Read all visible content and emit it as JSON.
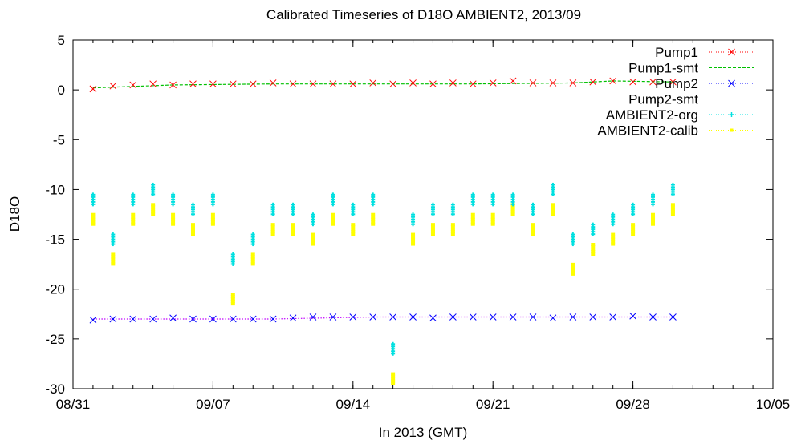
{
  "chart_data": {
    "type": "scatter",
    "title": "Calibrated Timeseries of D18O AMBIENT2, 2013/09",
    "xlabel": "In 2013 (GMT)",
    "ylabel": "D18O",
    "xlim": [
      "2013-08-31",
      "2013-10-05"
    ],
    "ylim": [
      -30,
      5
    ],
    "x_ticks": [
      "08/31",
      "09/07",
      "09/14",
      "09/21",
      "09/28",
      "10/05"
    ],
    "y_ticks": [
      "5",
      "0",
      "-5",
      "-10",
      "-15",
      "-20",
      "-25",
      "-30"
    ],
    "grid": false,
    "legend_position": "top-right",
    "series": [
      {
        "name": "Pump1",
        "marker": "x",
        "color": "#ff0000",
        "x": [
          "2013-09-01",
          "2013-09-02",
          "2013-09-03",
          "2013-09-04",
          "2013-09-05",
          "2013-09-06",
          "2013-09-07",
          "2013-09-08",
          "2013-09-09",
          "2013-09-10",
          "2013-09-11",
          "2013-09-12",
          "2013-09-13",
          "2013-09-14",
          "2013-09-15",
          "2013-09-16",
          "2013-09-17",
          "2013-09-18",
          "2013-09-19",
          "2013-09-20",
          "2013-09-21",
          "2013-09-22",
          "2013-09-23",
          "2013-09-24",
          "2013-09-25",
          "2013-09-26",
          "2013-09-27",
          "2013-09-28",
          "2013-09-29",
          "2013-09-30"
        ],
        "y": [
          0.1,
          0.4,
          0.5,
          0.6,
          0.5,
          0.6,
          0.6,
          0.6,
          0.6,
          0.7,
          0.6,
          0.6,
          0.6,
          0.6,
          0.7,
          0.6,
          0.7,
          0.6,
          0.7,
          0.6,
          0.7,
          0.9,
          0.7,
          0.7,
          0.7,
          0.8,
          0.9,
          0.8,
          0.8,
          0.8
        ]
      },
      {
        "name": "Pump1-smt",
        "marker": "line-dashed",
        "color": "#00c000",
        "x": [
          "2013-09-01",
          "2013-09-05",
          "2013-09-10",
          "2013-09-15",
          "2013-09-20",
          "2013-09-25",
          "2013-09-27",
          "2013-09-30"
        ],
        "y": [
          0.2,
          0.5,
          0.6,
          0.6,
          0.6,
          0.7,
          0.9,
          0.8
        ]
      },
      {
        "name": "Pump2",
        "marker": "x",
        "color": "#0000ff",
        "x": [
          "2013-09-01",
          "2013-09-02",
          "2013-09-03",
          "2013-09-04",
          "2013-09-05",
          "2013-09-06",
          "2013-09-07",
          "2013-09-08",
          "2013-09-09",
          "2013-09-10",
          "2013-09-11",
          "2013-09-12",
          "2013-09-13",
          "2013-09-14",
          "2013-09-15",
          "2013-09-16",
          "2013-09-17",
          "2013-09-18",
          "2013-09-19",
          "2013-09-20",
          "2013-09-21",
          "2013-09-22",
          "2013-09-23",
          "2013-09-24",
          "2013-09-25",
          "2013-09-26",
          "2013-09-27",
          "2013-09-28",
          "2013-09-29",
          "2013-09-30"
        ],
        "y": [
          -23.1,
          -23.0,
          -23.0,
          -23.0,
          -22.9,
          -23.0,
          -23.0,
          -23.0,
          -23.0,
          -23.0,
          -22.9,
          -22.8,
          -22.8,
          -22.8,
          -22.8,
          -22.8,
          -22.8,
          -22.9,
          -22.8,
          -22.8,
          -22.8,
          -22.8,
          -22.8,
          -22.9,
          -22.8,
          -22.8,
          -22.8,
          -22.7,
          -22.8,
          -22.8
        ]
      },
      {
        "name": "Pump2-smt",
        "marker": "line-dotted",
        "color": "#c000ff",
        "x": [
          "2013-09-01",
          "2013-09-05",
          "2013-09-10",
          "2013-09-15",
          "2013-09-20",
          "2013-09-25",
          "2013-09-30"
        ],
        "y": [
          -23.0,
          -23.0,
          -23.0,
          -22.8,
          -22.8,
          -22.8,
          -22.8
        ]
      },
      {
        "name": "AMBIENT2-org",
        "marker": "asterisk",
        "color": "#00e0e0",
        "x": [
          "2013-09-01",
          "2013-09-02",
          "2013-09-03",
          "2013-09-04",
          "2013-09-05",
          "2013-09-06",
          "2013-09-07",
          "2013-09-08",
          "2013-09-09",
          "2013-09-10",
          "2013-09-11",
          "2013-09-12",
          "2013-09-13",
          "2013-09-14",
          "2013-09-15",
          "2013-09-16",
          "2013-09-17",
          "2013-09-18",
          "2013-09-19",
          "2013-09-20",
          "2013-09-21",
          "2013-09-22",
          "2013-09-23",
          "2013-09-24",
          "2013-09-25",
          "2013-09-26",
          "2013-09-27",
          "2013-09-28",
          "2013-09-29",
          "2013-09-30"
        ],
        "y": [
          -11,
          -15,
          -11,
          -10,
          -11,
          -12,
          -11,
          -17,
          -15,
          -12,
          -12,
          -13,
          -11,
          -12,
          -11,
          -26,
          -13,
          -12,
          -12,
          -11,
          -11,
          -11,
          -12,
          -10,
          -15,
          -14,
          -13,
          -12,
          -11,
          -10
        ]
      },
      {
        "name": "AMBIENT2-calib",
        "marker": "dot",
        "color": "#ffff00",
        "x": [
          "2013-09-01",
          "2013-09-02",
          "2013-09-03",
          "2013-09-04",
          "2013-09-05",
          "2013-09-06",
          "2013-09-07",
          "2013-09-08",
          "2013-09-09",
          "2013-09-10",
          "2013-09-11",
          "2013-09-12",
          "2013-09-13",
          "2013-09-14",
          "2013-09-15",
          "2013-09-16",
          "2013-09-17",
          "2013-09-18",
          "2013-09-19",
          "2013-09-20",
          "2013-09-21",
          "2013-09-22",
          "2013-09-23",
          "2013-09-24",
          "2013-09-25",
          "2013-09-26",
          "2013-09-27",
          "2013-09-28",
          "2013-09-29",
          "2013-09-30"
        ],
        "y": [
          -13,
          -17,
          -13,
          -12,
          -13,
          -14,
          -13,
          -21,
          -17,
          -14,
          -14,
          -15,
          -13,
          -14,
          -13,
          -29,
          -15,
          -14,
          -14,
          -13,
          -13,
          -12,
          -14,
          -12,
          -18,
          -16,
          -15,
          -14,
          -13,
          -12
        ]
      }
    ]
  }
}
